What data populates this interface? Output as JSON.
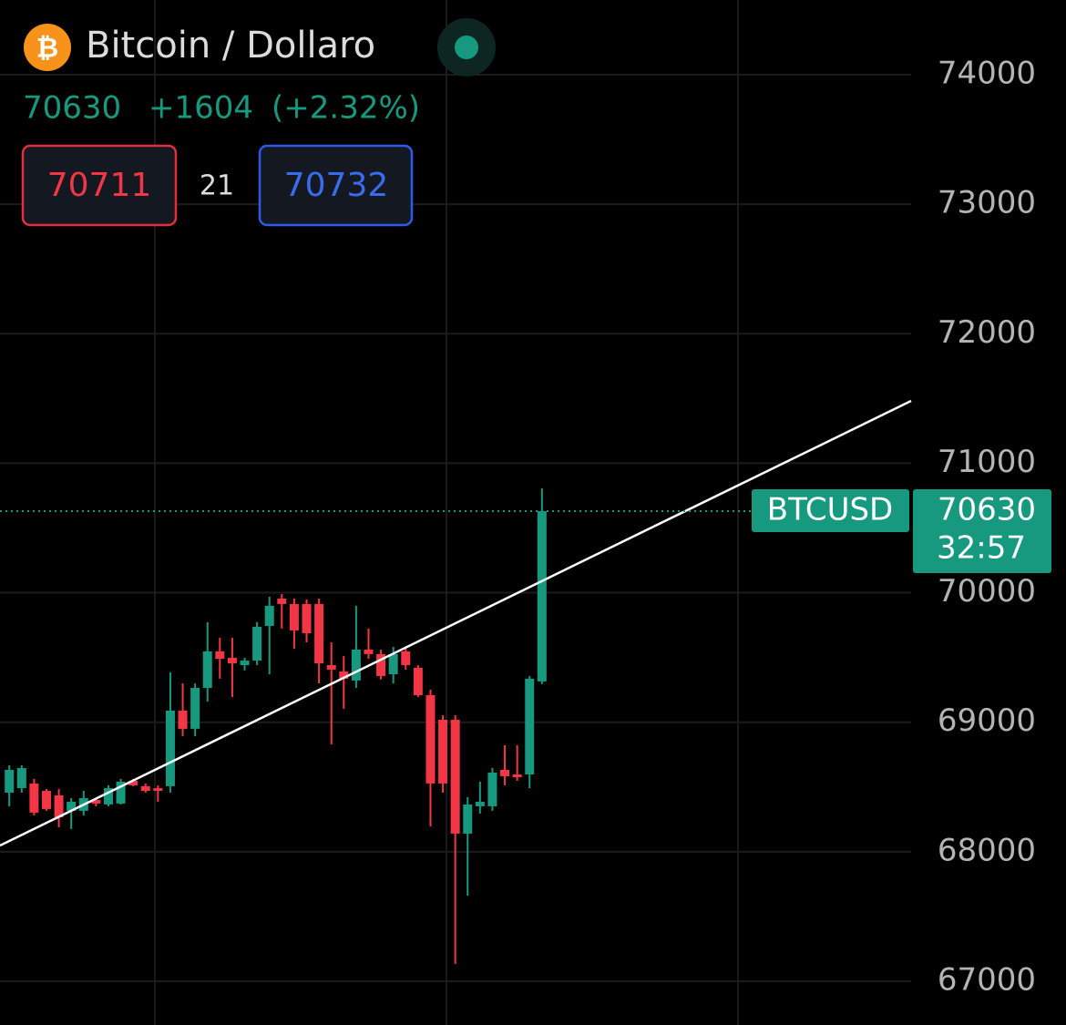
{
  "header": {
    "title": "Bitcoin / Dollaro",
    "price": "70630",
    "change": "+1604",
    "change_pct": "(+2.32%)",
    "bid": "70711",
    "spread": "21",
    "ask": "70732"
  },
  "chart_data": {
    "type": "candlestick",
    "symbol": "BTCUSD",
    "last_price": 70630,
    "countdown": "32:57",
    "up_color": "#16997f",
    "down_color": "#f23645",
    "grid": true,
    "ylim": [
      66662,
      74577
    ],
    "yticks": [
      67000,
      68000,
      69000,
      70000,
      71000,
      72000,
      73000,
      74000
    ],
    "xlim": [
      -0.75,
      72.8
    ],
    "open": [
      68456,
      68491,
      68527,
      68470,
      68435,
      68316,
      68316,
      68400,
      68365,
      68372,
      68548,
      68506,
      68491,
      68506,
      69090,
      68949,
      69265,
      69547,
      69498,
      69441,
      69476,
      69744,
      69955,
      69913,
      69913,
      69913,
      69441,
      69392,
      69322,
      69561,
      69526,
      69371,
      69547,
      69420,
      69209,
      69019,
      69019,
      68140,
      68351,
      68351,
      68632,
      68597,
      68597,
      69315
    ],
    "high": [
      68667,
      68667,
      68562,
      68485,
      68485,
      68414,
      68470,
      68414,
      68514,
      68562,
      68562,
      68527,
      68513,
      69385,
      69300,
      69300,
      69772,
      69652,
      69652,
      69498,
      69772,
      69969,
      69990,
      69955,
      69948,
      69955,
      69617,
      69511,
      69899,
      69723,
      69561,
      69582,
      69582,
      69440,
      69251,
      69054,
      69054,
      68421,
      68541,
      68646,
      68822,
      68822,
      69357,
      70806
    ],
    "low": [
      68351,
      68456,
      68280,
      68316,
      68189,
      68175,
      68280,
      68351,
      68351,
      68365,
      68506,
      68456,
      68386,
      68456,
      68893,
      68893,
      69160,
      69336,
      69195,
      69400,
      69441,
      69371,
      69723,
      69568,
      69617,
      69300,
      68829,
      69104,
      69265,
      69490,
      69330,
      69300,
      69406,
      69195,
      68196,
      68456,
      67134,
      67661,
      68295,
      68316,
      68513,
      68548,
      68491,
      69294
    ],
    "close": [
      68632,
      68646,
      68302,
      68330,
      68266,
      68386,
      68414,
      68372,
      68491,
      68541,
      68513,
      68470,
      68470,
      69090,
      68949,
      69265,
      69547,
      69490,
      69455,
      69476,
      69737,
      69899,
      69913,
      69709,
      69687,
      69455,
      69406,
      69336,
      69561,
      69526,
      69357,
      69526,
      69441,
      69209,
      68527,
      68527,
      68140,
      68365,
      68386,
      68611,
      68583,
      68576,
      69336,
      70630
    ],
    "trendline": {
      "color": "#ffffff",
      "x": [
        -0.75,
        72.8
      ],
      "values": [
        68048,
        71481
      ]
    }
  }
}
